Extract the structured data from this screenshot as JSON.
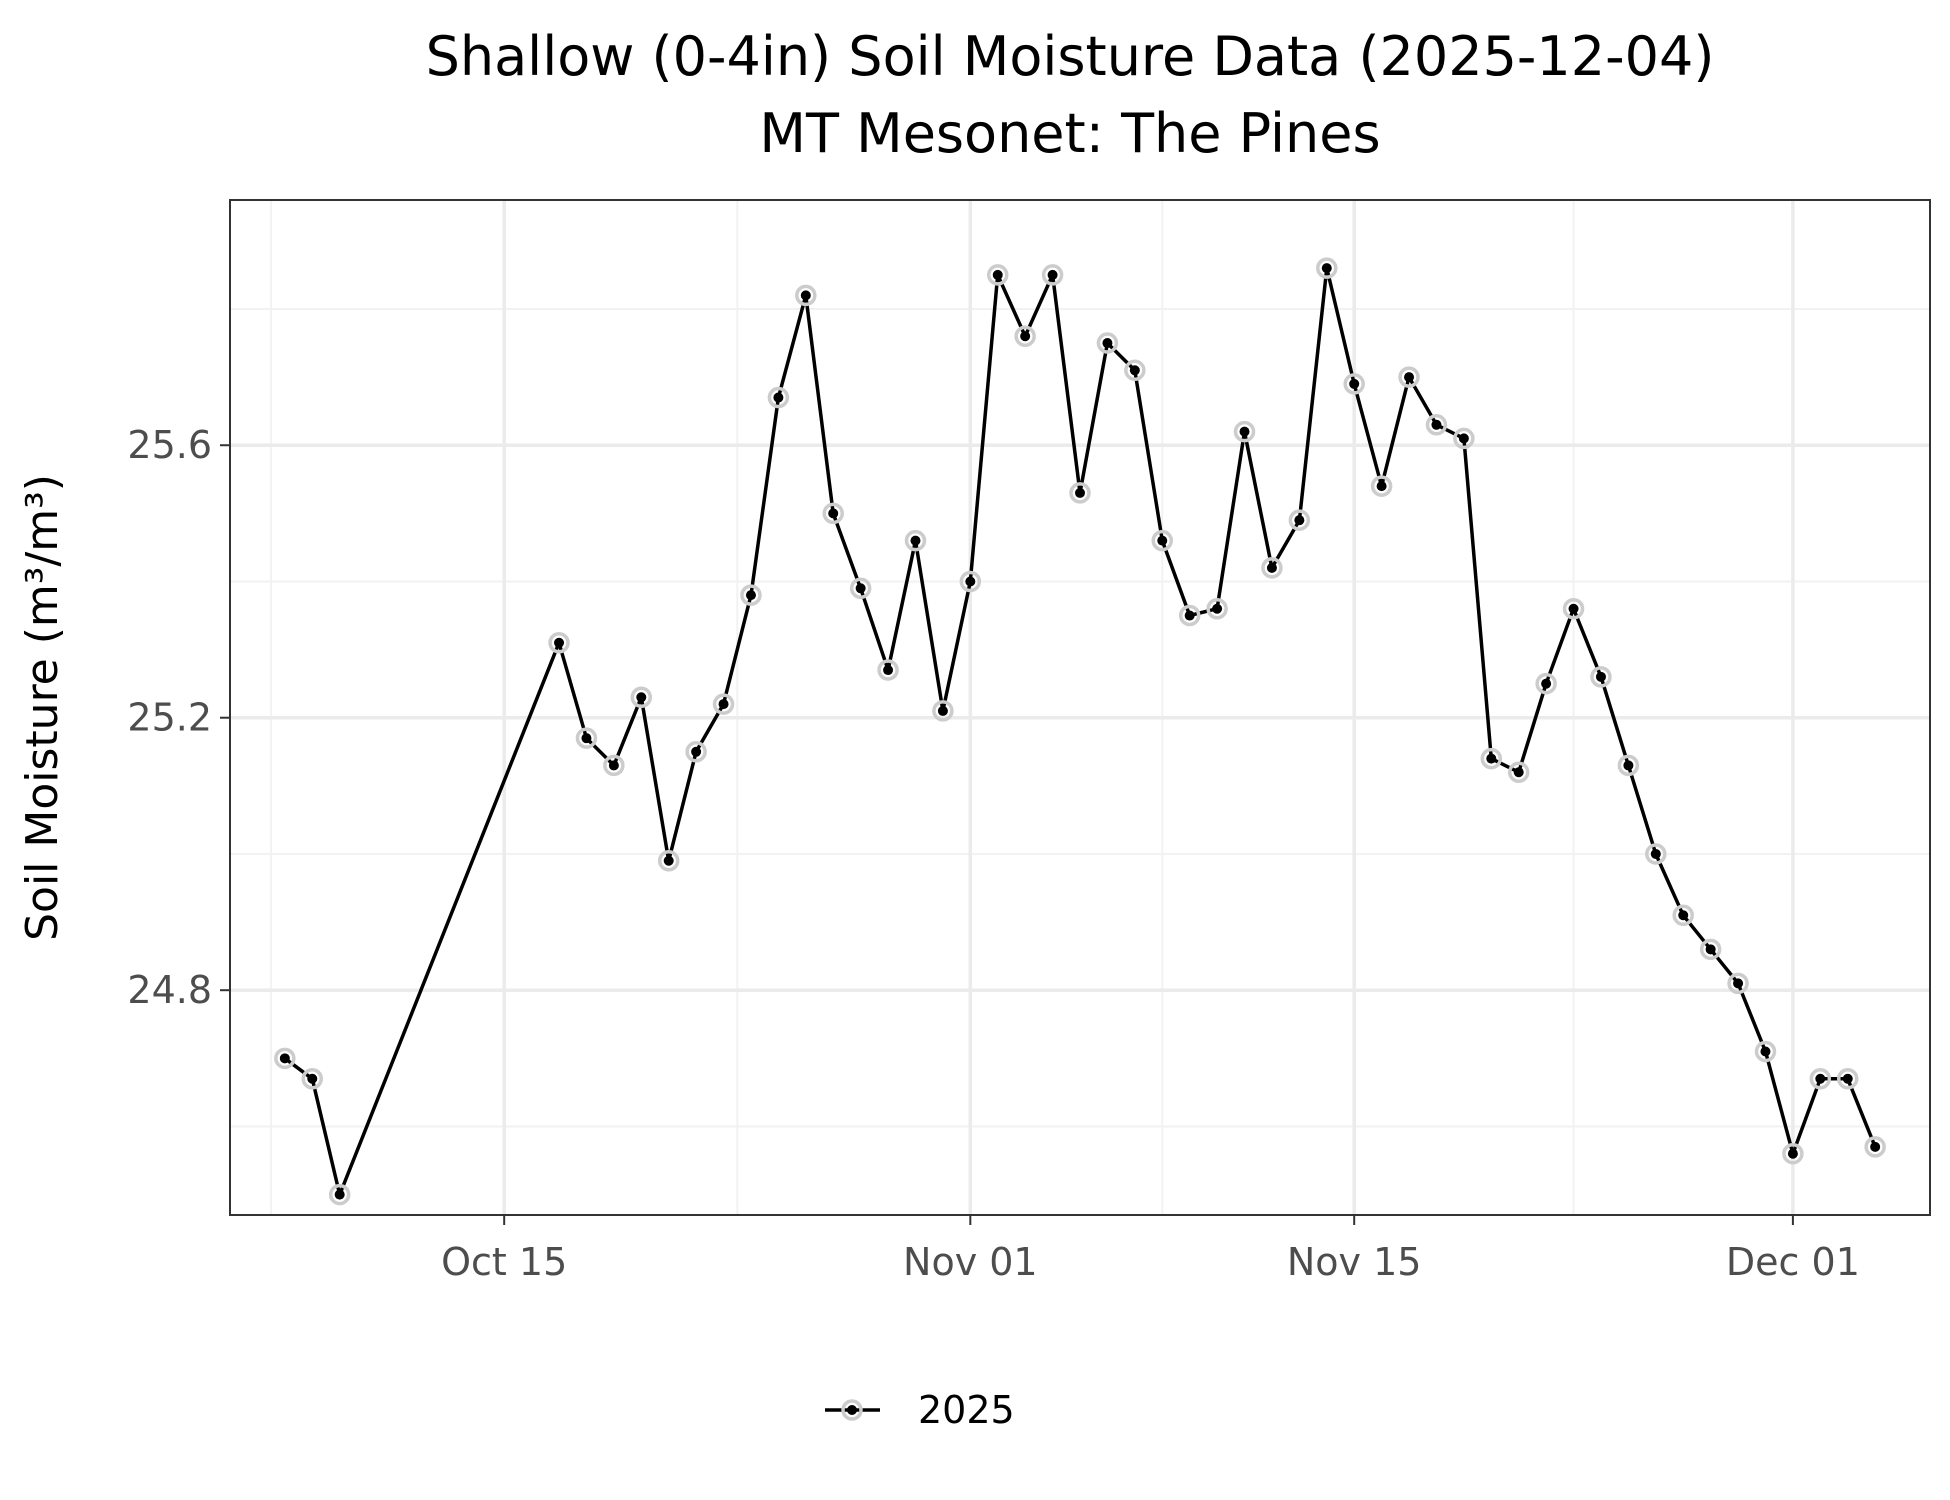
{
  "chart_data": {
    "type": "line",
    "title": "Shallow (0-4in) Soil Moisture Data (2025-12-04)",
    "subtitle": "MT Mesonet: The Pines",
    "ylabel": "Soil Moisture (m³/m³)",
    "xlabel": "",
    "x_ticks": [
      {
        "date": "2025-10-15",
        "label": "Oct 15"
      },
      {
        "date": "2025-11-01",
        "label": "Nov 01"
      },
      {
        "date": "2025-11-15",
        "label": "Nov 15"
      },
      {
        "date": "2025-12-01",
        "label": "Dec 01"
      }
    ],
    "y_ticks": [
      24.8,
      25.2,
      25.6
    ],
    "xlim": [
      "2025-10-05",
      "2025-12-06"
    ],
    "ylim": [
      24.47,
      25.96
    ],
    "grid": true,
    "legend_position": "bottom",
    "line_color": "#000000",
    "point_outline_color": "#cccccc",
    "series": [
      {
        "name": "2025",
        "x": [
          "2025-10-07",
          "2025-10-08",
          "2025-10-09",
          "2025-10-17",
          "2025-10-18",
          "2025-10-19",
          "2025-10-20",
          "2025-10-21",
          "2025-10-22",
          "2025-10-23",
          "2025-10-24",
          "2025-10-25",
          "2025-10-26",
          "2025-10-27",
          "2025-10-28",
          "2025-10-29",
          "2025-10-30",
          "2025-10-31",
          "2025-11-01",
          "2025-11-02",
          "2025-11-03",
          "2025-11-04",
          "2025-11-05",
          "2025-11-06",
          "2025-11-07",
          "2025-11-08",
          "2025-11-09",
          "2025-11-10",
          "2025-11-11",
          "2025-11-12",
          "2025-11-13",
          "2025-11-14",
          "2025-11-15",
          "2025-11-16",
          "2025-11-17",
          "2025-11-18",
          "2025-11-19",
          "2025-11-20",
          "2025-11-21",
          "2025-11-22",
          "2025-11-23",
          "2025-11-24",
          "2025-11-25",
          "2025-11-26",
          "2025-11-27",
          "2025-11-28",
          "2025-11-29",
          "2025-11-30",
          "2025-12-01",
          "2025-12-02",
          "2025-12-03",
          "2025-12-04"
        ],
        "y": [
          24.7,
          24.67,
          24.5,
          25.31,
          25.17,
          25.13,
          25.23,
          24.99,
          25.15,
          25.22,
          25.38,
          25.67,
          25.82,
          25.5,
          25.39,
          25.27,
          25.46,
          25.21,
          25.4,
          25.85,
          25.76,
          25.85,
          25.53,
          25.75,
          25.71,
          25.46,
          25.35,
          25.36,
          25.62,
          25.42,
          25.49,
          25.86,
          25.69,
          25.54,
          25.7,
          25.63,
          25.61,
          25.14,
          25.12,
          25.25,
          25.36,
          25.26,
          25.13,
          25.0,
          24.91,
          24.86,
          24.81,
          24.71,
          24.56,
          24.67,
          24.67,
          24.57
        ]
      }
    ]
  }
}
